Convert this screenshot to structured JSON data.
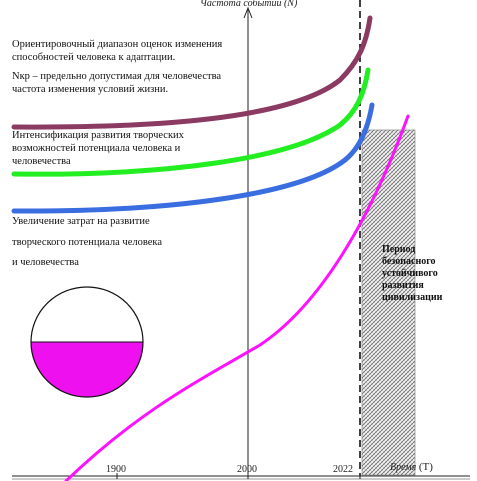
{
  "axes": {
    "y_title": "Частота событий (N)",
    "x_title_main": "Время",
    "x_title_unit": "(Т)"
  },
  "ticks": [
    "1900",
    "2000",
    "2022"
  ],
  "labels": {
    "range_line1": "Ориентировочный диапазон оценок изменения",
    "range_line2": "способностей человека к адаптации.",
    "nkr_line1": "Nкр – предельно допустимая для человечества",
    "nkr_line2": "частота изменения условий жизни.",
    "intens_line1": "Интенсификация развития творческих",
    "intens_line2": "возможностей потенциала человека и",
    "intens_line3": "человечества",
    "invest_line1": "Увеличение затрат на развитие",
    "invest_line2": "творческого потенциала человека",
    "invest_line3": "и человечества"
  },
  "period": {
    "line1": "Период",
    "line2": "безопасного",
    "line3": "устойчивого",
    "line4": "развития",
    "line5": "цивилизации"
  },
  "colors": {
    "curve_maroon": "#8b3a62",
    "curve_green": "#22ee22",
    "curve_blue": "#3a6ee0",
    "curve_magenta": "#ff10ff",
    "disc_fill": "#ee10ee"
  }
}
